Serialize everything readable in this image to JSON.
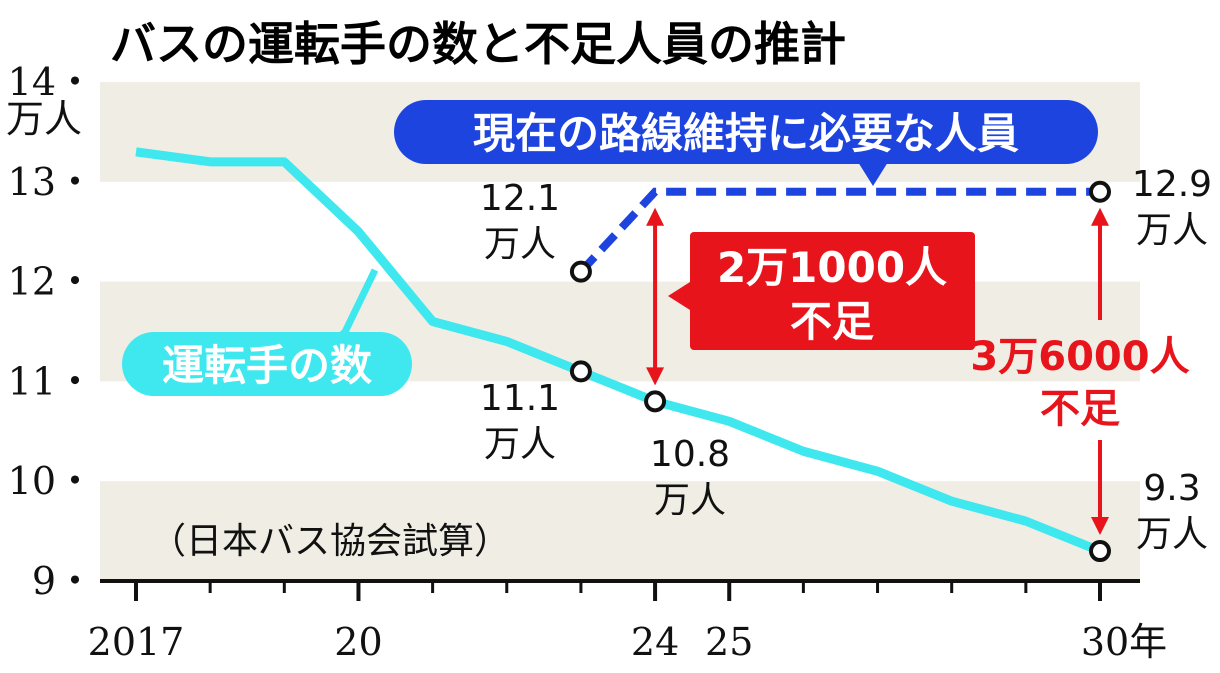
{
  "title": "バスの運転手の数と不足人員の推計",
  "source": "（日本バス協会試算）",
  "colors": {
    "driver_line": "#3ee8ee",
    "required_line": "#1e44e0",
    "shortage": "#e8141b",
    "band": "#efede4"
  },
  "chart_data": {
    "type": "line",
    "title": "バスの運転手の数と不足人員の推計",
    "ylabel": "万人",
    "xlabel": "年",
    "ylim": [
      9,
      14
    ],
    "xlim": [
      2017,
      2030
    ],
    "y_ticks": [
      {
        "value": 9,
        "label": "9・"
      },
      {
        "value": 10,
        "label": "10・"
      },
      {
        "value": 11,
        "label": "11・"
      },
      {
        "value": 12,
        "label": "12・"
      },
      {
        "value": 13,
        "label": "13・"
      },
      {
        "value": 14,
        "label": "14・"
      }
    ],
    "y_unit_label": "万人",
    "x_tick_labels": [
      {
        "value": 2017,
        "label": "2017"
      },
      {
        "value": 2020,
        "label": "20"
      },
      {
        "value": 2024,
        "label": "24"
      },
      {
        "value": 2025,
        "label": "25"
      },
      {
        "value": 2030,
        "label": "30年"
      }
    ],
    "series": [
      {
        "name": "運転手の数",
        "style": "solid",
        "x": [
          2017,
          2018,
          2019,
          2020,
          2021,
          2022,
          2023,
          2024,
          2025,
          2026,
          2027,
          2028,
          2029,
          2030
        ],
        "y": [
          13.3,
          13.2,
          13.2,
          12.5,
          11.6,
          11.4,
          11.1,
          10.8,
          10.6,
          10.3,
          10.1,
          9.8,
          9.6,
          9.3
        ]
      },
      {
        "name": "現在の路線維持に必要な人員",
        "style": "dashed",
        "x": [
          2023,
          2024,
          2030
        ],
        "y": [
          12.1,
          12.9,
          12.9
        ]
      }
    ],
    "point_labels": [
      {
        "x": 2023,
        "y": 12.1,
        "value": "12.1",
        "unit": "万人"
      },
      {
        "x": 2023,
        "y": 11.1,
        "value": "11.1",
        "unit": "万人"
      },
      {
        "x": 2024,
        "y": 10.8,
        "value": "10.8",
        "unit": "万人"
      },
      {
        "x": 2030,
        "y": 12.9,
        "value": "12.9",
        "unit": "万人"
      },
      {
        "x": 2030,
        "y": 9.3,
        "value": "9.3",
        "unit": "万人"
      }
    ],
    "annotations": [
      {
        "x": 2024,
        "from": 12.9,
        "to": 10.8,
        "line1": "2万1000人",
        "line2": "不足"
      },
      {
        "x": 2030,
        "from": 12.9,
        "to": 9.3,
        "line1": "3万6000人",
        "line2": "不足"
      }
    ]
  }
}
